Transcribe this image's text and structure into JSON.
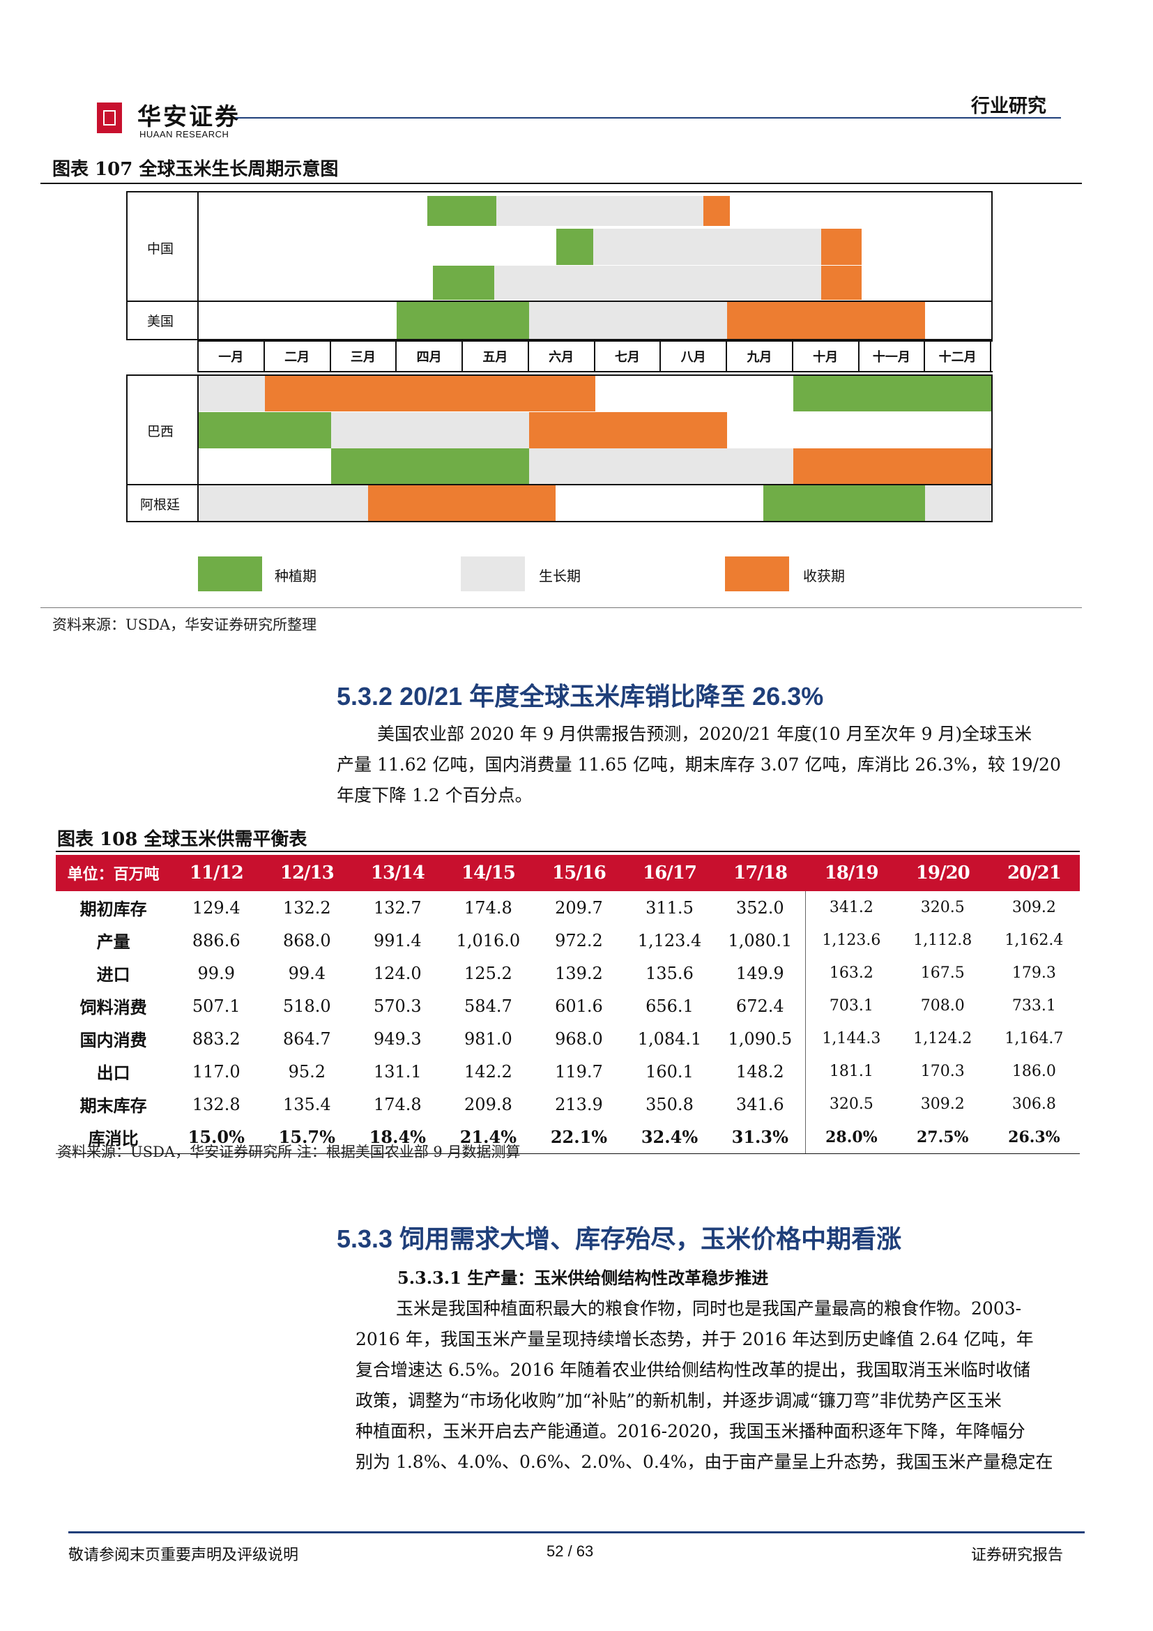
{
  "header": {
    "logo_name": "华安证券",
    "logo_en": "HUAAN RESEARCH",
    "tag": "行业研究"
  },
  "figure107": {
    "title": "图表 107 全球玉米生长周期示意图",
    "source": "资料来源：USDA，华安证券研究所整理",
    "months": [
      "一月",
      "二月",
      "三月",
      "四月",
      "五月",
      "六月",
      "七月",
      "八月",
      "九月",
      "十月",
      "十一月",
      "十二月"
    ],
    "row_labels": {
      "china": "中国",
      "usa": "美国",
      "brazil": "巴西",
      "argentina": "阿根廷"
    },
    "legend": {
      "planting": "种植期",
      "growing": "生长期",
      "harvest": "收获期"
    },
    "colors": {
      "planting": "#70ad47",
      "growing": "#e7e7e7",
      "harvest": "#ed7d31"
    },
    "phases_in_month_units": {
      "china_1": [
        [
          "planting",
          3.46,
          4.51
        ],
        [
          "growing",
          4.51,
          7.64
        ],
        [
          "harvest",
          7.64,
          8.04
        ]
      ],
      "china_2": [
        [
          "planting",
          5.41,
          5.97
        ],
        [
          "growing",
          5.97,
          9.42
        ],
        [
          "harvest",
          9.42,
          10.04
        ]
      ],
      "china_3": [
        [
          "planting",
          3.55,
          4.48
        ],
        [
          "growing",
          4.48,
          9.42
        ],
        [
          "harvest",
          9.42,
          10.04
        ]
      ],
      "usa": [
        [
          "planting",
          3.0,
          5.0
        ],
        [
          "growing",
          5.0,
          8.0
        ],
        [
          "harvest",
          8.0,
          11.0
        ]
      ],
      "brazil_1": [
        [
          "growing",
          0.0,
          1.0
        ],
        [
          "harvest",
          1.0,
          6.0
        ],
        [
          "planting",
          9.0,
          12.0
        ]
      ],
      "brazil_2": [
        [
          "planting",
          0.0,
          2.0
        ],
        [
          "growing",
          2.0,
          5.0
        ],
        [
          "harvest",
          5.0,
          8.0
        ]
      ],
      "brazil_3": [
        [
          "planting",
          2.0,
          5.0
        ],
        [
          "growing",
          5.0,
          9.0
        ],
        [
          "harvest",
          9.0,
          12.0
        ]
      ],
      "argentina": [
        [
          "growing",
          0.0,
          2.56
        ],
        [
          "harvest",
          2.56,
          5.4
        ],
        [
          "planting",
          8.55,
          11.0
        ],
        [
          "growing",
          11.0,
          12.0
        ]
      ]
    }
  },
  "section532": {
    "heading": "5.3.2 20/21 年度全球玉米库销比降至 26.3%",
    "para_lines": [
      "美国农业部 2020 年 9 月供需报告预测，2020/21 年度(10 月至次年 9 月)全球玉米",
      "产量 11.62 亿吨，国内消费量 11.65 亿吨，期末库存 3.07 亿吨，库消比 26.3%，较 19/20",
      "年度下降 1.2 个百分点。"
    ]
  },
  "figure108": {
    "title": "图表 108 全球玉米供需平衡表",
    "unit_label": "单位：百万吨",
    "years": [
      "11/12",
      "12/13",
      "13/14",
      "14/15",
      "15/16",
      "16/17",
      "17/18",
      "18/19",
      "19/20",
      "20/21"
    ],
    "rows": [
      {
        "label": "期初库存",
        "values": [
          "129.4",
          "132.2",
          "132.7",
          "174.8",
          "209.7",
          "311.5",
          "352.0",
          "341.2",
          "320.5",
          "309.2"
        ]
      },
      {
        "label": "产量",
        "values": [
          "886.6",
          "868.0",
          "991.4",
          "1,016.0",
          "972.2",
          "1,123.4",
          "1,080.1",
          "1,123.6",
          "1,112.8",
          "1,162.4"
        ]
      },
      {
        "label": "进口",
        "values": [
          "99.9",
          "99.4",
          "124.0",
          "125.2",
          "139.2",
          "135.6",
          "149.9",
          "163.2",
          "167.5",
          "179.3"
        ]
      },
      {
        "label": "饲料消费",
        "values": [
          "507.1",
          "518.0",
          "570.3",
          "584.7",
          "601.6",
          "656.1",
          "672.4",
          "703.1",
          "708.0",
          "733.1"
        ]
      },
      {
        "label": "国内消费",
        "values": [
          "883.2",
          "864.7",
          "949.3",
          "981.0",
          "968.0",
          "1,084.1",
          "1,090.5",
          "1,144.3",
          "1,124.2",
          "1,164.7"
        ]
      },
      {
        "label": "出口",
        "values": [
          "117.0",
          "95.2",
          "131.1",
          "142.2",
          "119.7",
          "160.1",
          "148.2",
          "181.1",
          "170.3",
          "186.0"
        ]
      },
      {
        "label": "期末库存",
        "values": [
          "132.8",
          "135.4",
          "174.8",
          "209.8",
          "213.9",
          "350.8",
          "341.6",
          "320.5",
          "309.2",
          "306.8"
        ]
      },
      {
        "label": "库消比",
        "values": [
          "15.0%",
          "15.7%",
          "18.4%",
          "21.4%",
          "22.1%",
          "32.4%",
          "31.3%",
          "28.0%",
          "27.5%",
          "26.3%"
        ]
      }
    ],
    "source": "资料来源：USDA，华安证券研究所 注：根据美国农业部 9 月数据测算"
  },
  "section533": {
    "heading": "5.3.3 饲用需求大增、库存殆尽，玉米价格中期看涨",
    "subheading": "5.3.3.1 生产量：玉米供给侧结构性改革稳步推进",
    "para_lines": [
      "玉米是我国种植面积最大的粮食作物，同时也是我国产量最高的粮食作物。2003-",
      "2016 年，我国玉米产量呈现持续增长态势，并于 2016 年达到历史峰值 2.64 亿吨，年",
      "复合增速达 6.5%。2016 年随着农业供给侧结构性改革的提出，我国取消玉米临时收储",
      "政策，调整为“市场化收购”加“补贴”的新机制，并逐步调减“镰刀弯”非优势产区玉米",
      "种植面积，玉米开启去产能通道。2016-2020，我国玉米播种面积逐年下降，年降幅分",
      "别为 1.8%、4.0%、0.6%、2.0%、0.4%，由于亩产量呈上升态势，我国玉米产量稳定在"
    ]
  },
  "footer": {
    "left": "敬请参阅末页重要声明及评级说明",
    "page": "52 / 63",
    "right": "证券研究报告"
  }
}
